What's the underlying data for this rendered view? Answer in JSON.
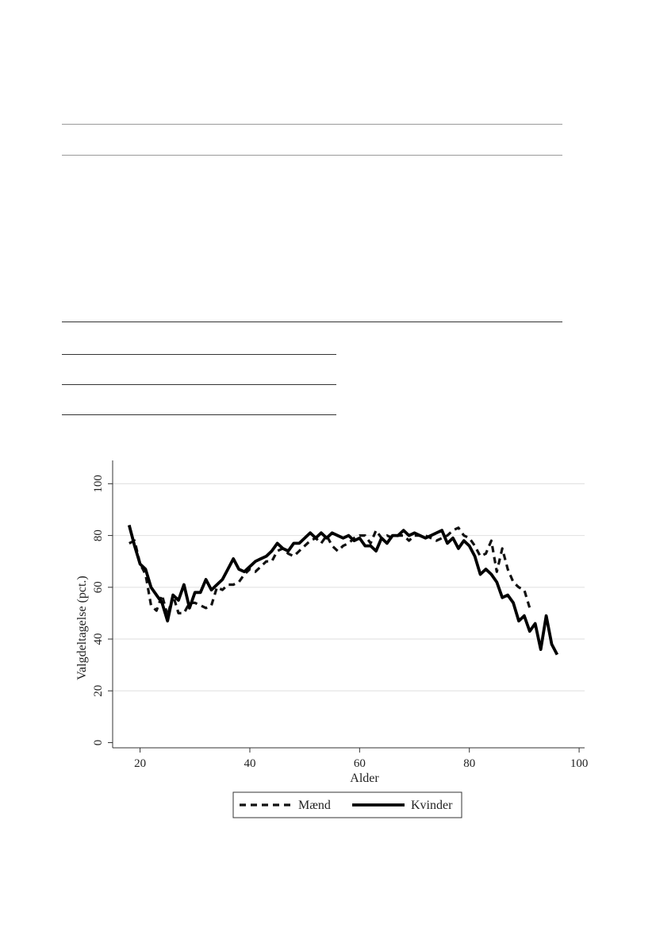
{
  "chart_data": {
    "type": "line",
    "xlabel": "Alder",
    "ylabel": "Valgdeltagelse (pct.)",
    "xlim": [
      15,
      101
    ],
    "ylim": [
      -2,
      109
    ],
    "xticks": [
      "20",
      "40",
      "60",
      "80",
      "100"
    ],
    "yticks": [
      "0",
      "20",
      "40",
      "60",
      "80",
      "100"
    ],
    "grid": true,
    "legend_position": "bottom-center",
    "series": [
      {
        "name": "Mænd",
        "style": "dashed",
        "color": "#111111",
        "x": [
          18,
          19,
          20,
          21,
          22,
          23,
          24,
          25,
          26,
          27,
          28,
          29,
          30,
          31,
          32,
          33,
          34,
          35,
          36,
          37,
          38,
          39,
          40,
          41,
          42,
          43,
          44,
          45,
          46,
          47,
          48,
          49,
          50,
          51,
          52,
          53,
          54,
          55,
          56,
          57,
          58,
          59,
          60,
          61,
          62,
          63,
          64,
          65,
          66,
          67,
          68,
          69,
          70,
          71,
          72,
          73,
          74,
          75,
          76,
          77,
          78,
          79,
          80,
          81,
          82,
          83,
          84,
          85,
          86,
          87,
          88,
          89,
          90,
          91
        ],
        "y": [
          77,
          78,
          69,
          65,
          53,
          51,
          57,
          49,
          57,
          50,
          50,
          54,
          54,
          53,
          52,
          53,
          60,
          59,
          61,
          61,
          62,
          65,
          67,
          66,
          68,
          70,
          70,
          74,
          75,
          73,
          72,
          74,
          76,
          78,
          79,
          77,
          80,
          76,
          74,
          76,
          77,
          79,
          80,
          80,
          77,
          82,
          79,
          80,
          79,
          80,
          80,
          78,
          80,
          80,
          80,
          79,
          78,
          79,
          80,
          82,
          83,
          80,
          79,
          76,
          72,
          73,
          78,
          66,
          75,
          67,
          62,
          60,
          59,
          52
        ]
      },
      {
        "name": "Kvinder",
        "style": "solid",
        "color": "#000000",
        "x": [
          18,
          19,
          20,
          21,
          22,
          23,
          24,
          25,
          26,
          27,
          28,
          29,
          30,
          31,
          32,
          33,
          34,
          35,
          36,
          37,
          38,
          39,
          40,
          41,
          42,
          43,
          44,
          45,
          46,
          47,
          48,
          49,
          50,
          51,
          52,
          53,
          54,
          55,
          56,
          57,
          58,
          59,
          60,
          61,
          62,
          63,
          64,
          65,
          66,
          67,
          68,
          69,
          70,
          71,
          72,
          73,
          74,
          75,
          76,
          77,
          78,
          79,
          80,
          81,
          82,
          83,
          84,
          85,
          86,
          87,
          88,
          89,
          90,
          91,
          92,
          93,
          94,
          95,
          96
        ],
        "y": [
          84,
          76,
          69,
          67,
          60,
          57,
          54,
          47,
          57,
          55,
          61,
          52,
          58,
          58,
          63,
          59,
          61,
          63,
          67,
          71,
          67,
          66,
          68,
          70,
          71,
          72,
          74,
          77,
          75,
          74,
          77,
          77,
          79,
          81,
          79,
          81,
          79,
          81,
          80,
          79,
          80,
          78,
          79,
          76,
          76,
          74,
          79,
          77,
          80,
          80,
          82,
          80,
          81,
          80,
          79,
          80,
          81,
          82,
          77,
          79,
          75,
          78,
          76,
          72,
          65,
          67,
          65,
          62,
          56,
          57,
          54,
          47,
          49,
          43,
          46,
          36,
          49,
          38,
          34
        ]
      }
    ]
  }
}
